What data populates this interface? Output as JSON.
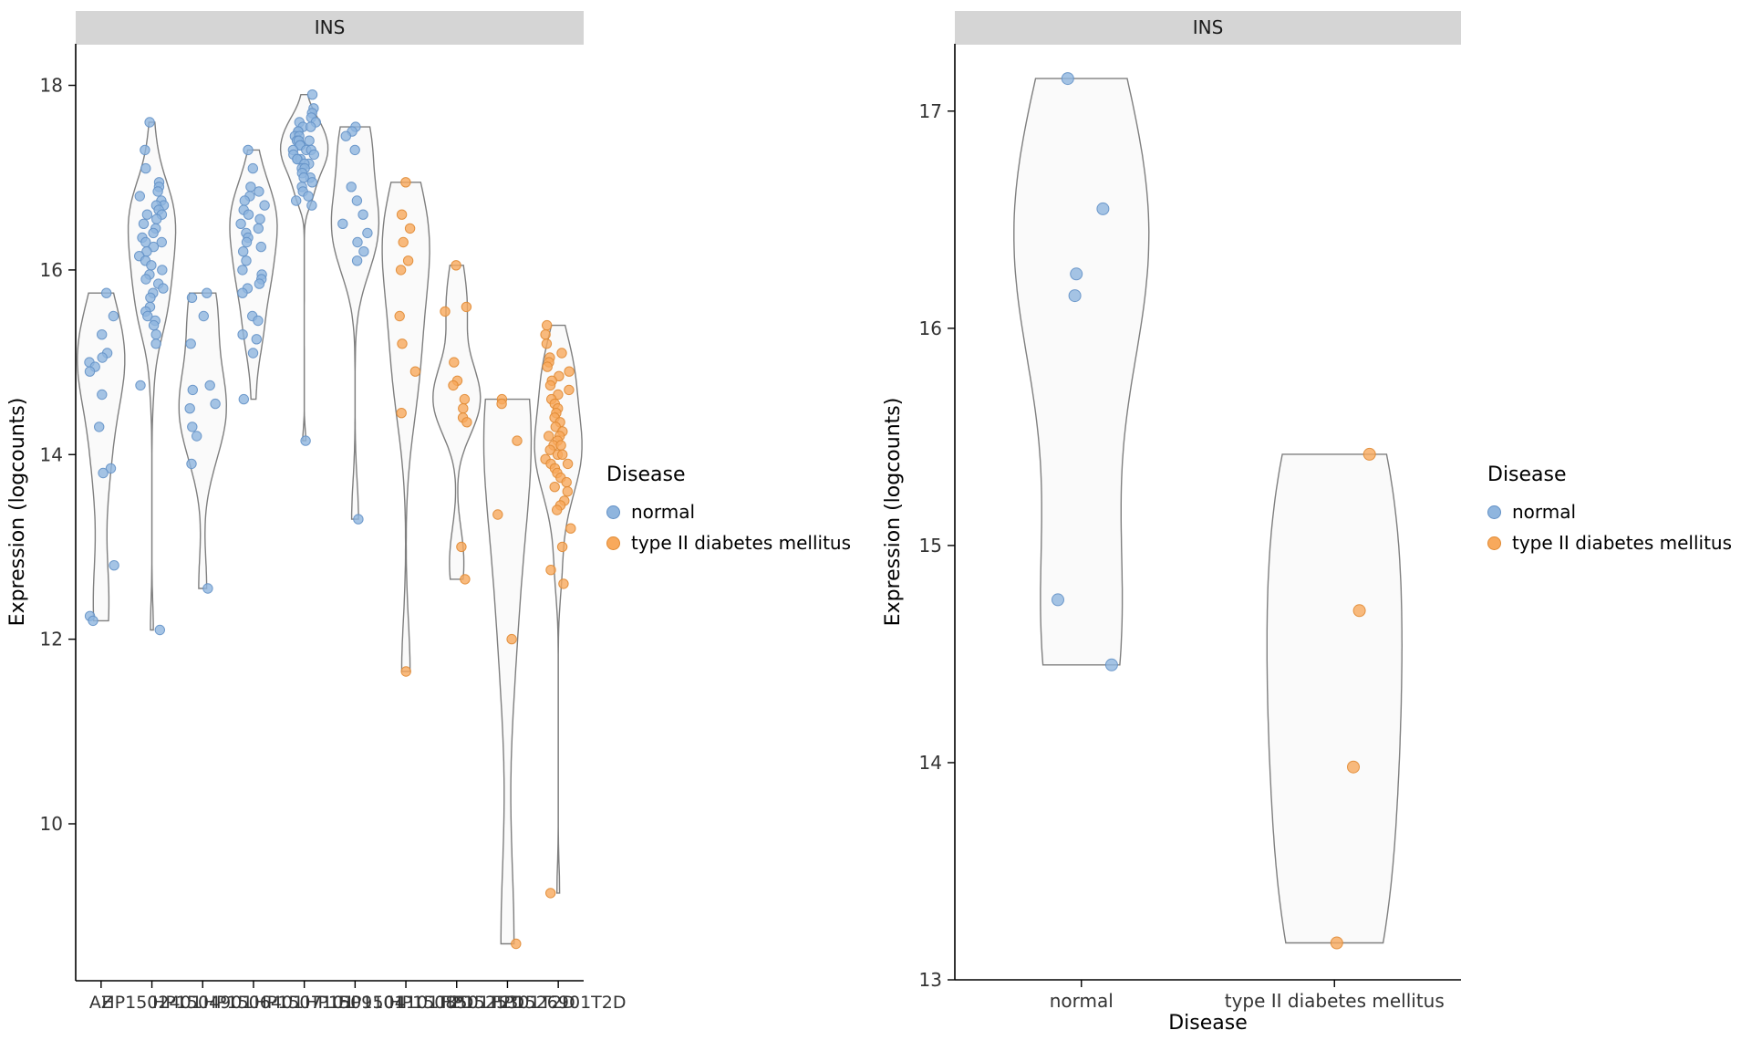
{
  "legend": {
    "title": "Disease",
    "entries": [
      {
        "label": "normal",
        "color": "#8FB5DE"
      },
      {
        "label": "type II diabetes mellitus",
        "color": "#F8A95C"
      }
    ]
  },
  "colors": {
    "normal_fill": "#8FB5DE",
    "normal_stroke": "#6391C6",
    "t2d_fill": "#F8A95C",
    "t2d_stroke": "#E08A33",
    "violin_fill": "#FAFAFA",
    "violin_stroke": "#7F7F7F",
    "strip_bg": "#D5D5D5",
    "axis": "#000000",
    "tick_label": "#333333"
  },
  "chart_data": [
    {
      "type": "violin",
      "title": "INS",
      "xlabel": "",
      "ylabel": "Expression (logcounts)",
      "yticks": [
        10,
        12,
        14,
        16,
        18
      ],
      "ylim": [
        8.3,
        18.45
      ],
      "legend_position": "right",
      "grid": false,
      "groups": [
        {
          "label": "AZ",
          "series": "normal",
          "values": [
            15.75,
            15.5,
            15.3,
            15.1,
            15.05,
            15.0,
            14.95,
            14.9,
            14.65,
            14.3,
            13.85,
            13.8,
            12.8,
            12.25,
            12.2
          ]
        },
        {
          "label": "HP1502401",
          "series": "normal",
          "values": [
            17.6,
            17.3,
            17.1,
            16.95,
            16.9,
            16.85,
            16.8,
            16.75,
            16.7,
            16.7,
            16.65,
            16.6,
            16.6,
            16.55,
            16.5,
            16.45,
            16.4,
            16.35,
            16.3,
            16.3,
            16.25,
            16.2,
            16.15,
            16.1,
            16.05,
            16.0,
            15.95,
            15.9,
            15.85,
            15.8,
            15.75,
            15.7,
            15.6,
            15.55,
            15.5,
            15.45,
            15.4,
            15.3,
            15.2,
            14.75,
            12.1
          ]
        },
        {
          "label": "HP1504901",
          "series": "normal",
          "values": [
            15.75,
            15.7,
            15.5,
            15.2,
            14.75,
            14.7,
            14.55,
            14.5,
            14.3,
            14.2,
            13.9,
            12.55
          ]
        },
        {
          "label": "HP1506401",
          "series": "normal",
          "values": [
            17.3,
            17.1,
            16.9,
            16.85,
            16.8,
            16.75,
            16.7,
            16.65,
            16.6,
            16.55,
            16.5,
            16.45,
            16.4,
            16.35,
            16.3,
            16.25,
            16.2,
            16.1,
            16.0,
            15.95,
            15.9,
            15.85,
            15.8,
            15.75,
            15.5,
            15.45,
            15.3,
            15.25,
            15.1,
            14.6
          ]
        },
        {
          "label": "HP1507101",
          "series": "normal",
          "values": [
            17.9,
            17.75,
            17.7,
            17.65,
            17.6,
            17.6,
            17.55,
            17.55,
            17.5,
            17.5,
            17.45,
            17.45,
            17.4,
            17.4,
            17.4,
            17.35,
            17.35,
            17.3,
            17.3,
            17.3,
            17.25,
            17.25,
            17.2,
            17.2,
            17.2,
            17.15,
            17.15,
            17.1,
            17.1,
            17.05,
            17.0,
            17.0,
            16.95,
            16.9,
            16.85,
            16.8,
            16.75,
            16.7,
            14.15
          ]
        },
        {
          "label": "HP1509101",
          "series": "normal",
          "values": [
            17.55,
            17.5,
            17.45,
            17.3,
            16.9,
            16.75,
            16.6,
            16.5,
            16.4,
            16.3,
            16.2,
            16.1,
            13.3
          ]
        },
        {
          "label": "HP1504101T2D",
          "series": "type II diabetes mellitus",
          "values": [
            16.95,
            16.6,
            16.45,
            16.3,
            16.1,
            16.0,
            15.5,
            15.2,
            14.9,
            14.45,
            11.65
          ]
        },
        {
          "label": "HP1508501T2D",
          "series": "type II diabetes mellitus",
          "values": [
            16.05,
            15.6,
            15.55,
            15.0,
            14.8,
            14.75,
            14.6,
            14.5,
            14.4,
            14.35,
            13.0,
            12.65
          ]
        },
        {
          "label": "HP1525301T2D",
          "series": "type II diabetes mellitus",
          "values": [
            14.6,
            14.55,
            14.15,
            13.35,
            12.0,
            8.7
          ]
        },
        {
          "label": "HP1526901T2D",
          "series": "type II diabetes mellitus",
          "values": [
            15.4,
            15.3,
            15.2,
            15.1,
            15.05,
            15.0,
            14.95,
            14.9,
            14.85,
            14.8,
            14.75,
            14.7,
            14.65,
            14.6,
            14.55,
            14.5,
            14.45,
            14.4,
            14.35,
            14.3,
            14.25,
            14.2,
            14.2,
            14.15,
            14.1,
            14.1,
            14.05,
            14.0,
            14.0,
            13.95,
            13.9,
            13.9,
            13.85,
            13.8,
            13.75,
            13.7,
            13.65,
            13.6,
            13.5,
            13.45,
            13.4,
            13.2,
            13.0,
            12.75,
            12.6,
            9.25
          ]
        }
      ]
    },
    {
      "type": "violin",
      "title": "INS",
      "xlabel": "Disease",
      "ylabel": "Expression (logcounts)",
      "yticks": [
        13,
        14,
        15,
        16,
        17
      ],
      "ylim": [
        13.0,
        17.31
      ],
      "legend_position": "right",
      "grid": false,
      "groups": [
        {
          "label": "normal",
          "series": "normal",
          "values": [
            17.15,
            16.55,
            16.25,
            16.15,
            14.75,
            14.45
          ]
        },
        {
          "label": "type II diabetes mellitus",
          "series": "type II diabetes mellitus",
          "values": [
            15.42,
            14.7,
            13.98,
            13.17
          ]
        }
      ]
    }
  ]
}
